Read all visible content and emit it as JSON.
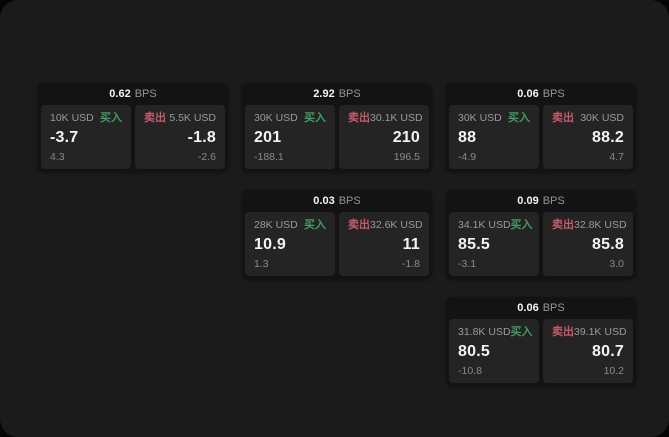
{
  "ui": {
    "bps_unit": "BPS",
    "buy_label": "买入",
    "sell_label": "卖出"
  },
  "colors": {
    "buy": "#3e9e60",
    "sell": "#c45a6a",
    "screen_bg": "#1b1b1b",
    "card_bg": "#131313",
    "panel_bg": "#242424"
  },
  "cards": [
    {
      "bps": "0.62",
      "buy_amount": "10K USD",
      "buy_value": "-3.7",
      "buy_sub": "4.3",
      "sell_amount": "5.5K USD",
      "sell_value": "-1.8",
      "sell_sub": "-2.6"
    },
    {
      "bps": "2.92",
      "buy_amount": "30K USD",
      "buy_value": "201",
      "buy_sub": "-188.1",
      "sell_amount": "30.1K USD",
      "sell_value": "210",
      "sell_sub": "196.5"
    },
    {
      "bps": "0.06",
      "buy_amount": "30K USD",
      "buy_value": "88",
      "buy_sub": "-4.9",
      "sell_amount": "30K USD",
      "sell_value": "88.2",
      "sell_sub": "4.7"
    },
    {
      "bps": "0.03",
      "buy_amount": "28K USD",
      "buy_value": "10.9",
      "buy_sub": "1.3",
      "sell_amount": "32.6K USD",
      "sell_value": "11",
      "sell_sub": "-1.8"
    },
    {
      "bps": "0.09",
      "buy_amount": "34.1K USD",
      "buy_value": "85.5",
      "buy_sub": "-3.1",
      "sell_amount": "32.8K USD",
      "sell_value": "85.8",
      "sell_sub": "3.0"
    },
    {
      "bps": "0.06",
      "buy_amount": "31.8K USD",
      "buy_value": "80.5",
      "buy_sub": "-10.8",
      "sell_amount": "39.1K USD",
      "sell_value": "80.7",
      "sell_sub": "10.2"
    }
  ]
}
